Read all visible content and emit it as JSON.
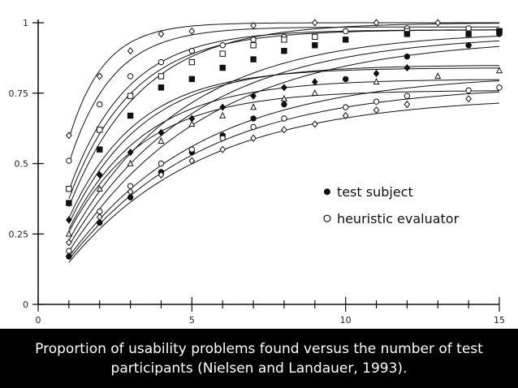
{
  "caption": "Proportion of usability problems found versus the number of test participants (Nielsen and Landauer, 1993).",
  "chart_data": {
    "type": "scatter",
    "title": "",
    "xlabel": "",
    "ylabel": "",
    "xlim": [
      0,
      15
    ],
    "ylim": [
      0,
      1
    ],
    "xticks": [
      "0",
      "5",
      "10",
      "15"
    ],
    "yticks": [
      "0",
      "0.25",
      "0.5",
      "0.75",
      "1"
    ],
    "grid": false,
    "legend": {
      "placement": "center-right",
      "entries": [
        {
          "symbol": "filled-circle",
          "label": "test subject"
        },
        {
          "symbol": "open-circle",
          "label": "heuristic evaluator"
        }
      ]
    },
    "curve_fits": [
      0.6,
      0.51,
      0.41,
      0.38,
      0.35,
      0.31,
      0.29,
      0.27,
      0.26,
      0.23,
      0.21,
      0.19,
      0.17,
      0.16,
      0.15
    ],
    "series": [
      {
        "marker": "open-diamond",
        "color": "#111111",
        "x": [
          1,
          2,
          3,
          4,
          5,
          7,
          9,
          11,
          13
        ],
        "y": [
          0.6,
          0.81,
          0.9,
          0.96,
          0.97,
          0.99,
          1.0,
          1.0,
          1.0
        ]
      },
      {
        "marker": "open-circle",
        "color": "#111111",
        "x": [
          1,
          2,
          3,
          4,
          5,
          6,
          7,
          8,
          10,
          12,
          14
        ],
        "y": [
          0.51,
          0.71,
          0.81,
          0.86,
          0.9,
          0.92,
          0.94,
          0.95,
          0.97,
          0.98,
          0.98
        ]
      },
      {
        "marker": "open-square",
        "color": "#111111",
        "x": [
          1,
          2,
          3,
          4,
          5,
          6,
          7,
          8,
          9,
          12,
          15
        ],
        "y": [
          0.41,
          0.62,
          0.74,
          0.81,
          0.86,
          0.89,
          0.92,
          0.94,
          0.95,
          0.97,
          0.97
        ]
      },
      {
        "marker": "filled-square",
        "color": "#111111",
        "x": [
          1,
          2,
          3,
          4,
          5,
          6,
          7,
          8,
          9,
          10,
          12,
          14,
          15
        ],
        "y": [
          0.36,
          0.55,
          0.67,
          0.77,
          0.8,
          0.84,
          0.87,
          0.9,
          0.92,
          0.94,
          0.96,
          0.96,
          0.97
        ]
      },
      {
        "marker": "filled-circle",
        "color": "#111111",
        "x": [
          1,
          2,
          3,
          4,
          5,
          6,
          7,
          8,
          10,
          12,
          14,
          15
        ],
        "y": [
          0.17,
          0.29,
          0.38,
          0.47,
          0.54,
          0.6,
          0.66,
          0.71,
          0.8,
          0.88,
          0.92,
          0.96
        ]
      },
      {
        "marker": "filled-diamond",
        "color": "#111111",
        "x": [
          1,
          2,
          3,
          4,
          5,
          6,
          7,
          8,
          9,
          11,
          12
        ],
        "y": [
          0.3,
          0.46,
          0.54,
          0.61,
          0.66,
          0.7,
          0.74,
          0.77,
          0.79,
          0.82,
          0.84
        ]
      },
      {
        "marker": "open-triangle",
        "color": "#111111",
        "x": [
          1,
          2,
          3,
          4,
          5,
          6,
          7,
          8,
          9,
          11,
          13,
          15
        ],
        "y": [
          0.25,
          0.41,
          0.5,
          0.58,
          0.64,
          0.67,
          0.7,
          0.73,
          0.75,
          0.79,
          0.81,
          0.83
        ]
      },
      {
        "marker": "open-circle",
        "color": "#111111",
        "x": [
          1,
          2,
          3,
          4,
          5,
          6,
          7,
          8,
          10,
          11,
          12,
          14,
          15
        ],
        "y": [
          0.19,
          0.33,
          0.42,
          0.5,
          0.55,
          0.59,
          0.63,
          0.66,
          0.7,
          0.72,
          0.74,
          0.76,
          0.77
        ]
      },
      {
        "marker": "open-diamond",
        "color": "#111111",
        "x": [
          1,
          2,
          3,
          4,
          5,
          6,
          7,
          8,
          9,
          10,
          11,
          12,
          14
        ],
        "y": [
          0.22,
          0.31,
          0.4,
          0.46,
          0.51,
          0.55,
          0.59,
          0.62,
          0.64,
          0.67,
          0.69,
          0.71,
          0.73
        ]
      }
    ]
  }
}
